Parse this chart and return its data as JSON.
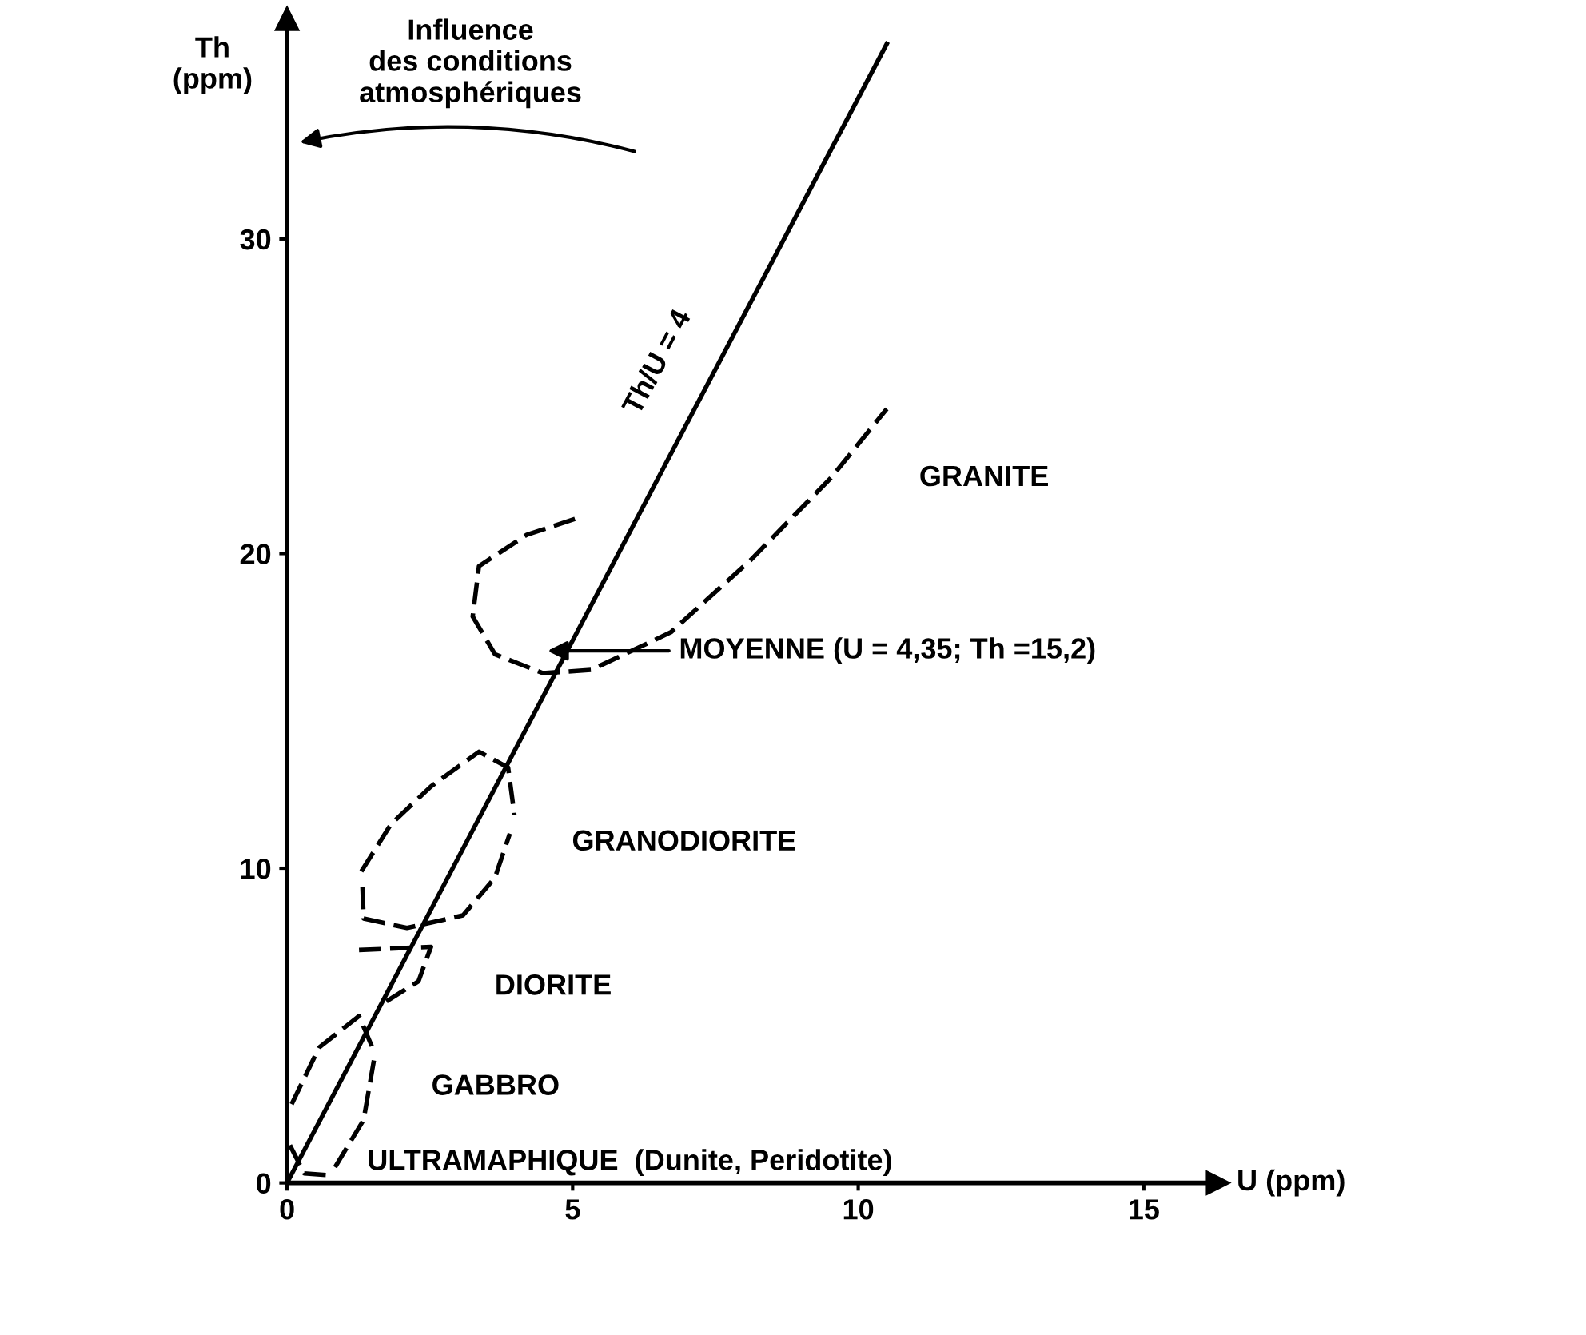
{
  "chart_data": {
    "type": "line",
    "xlabel": "U (ppm)",
    "ylabel": "Th\n(ppm)",
    "xlim": [
      0,
      16.3
    ],
    "ylim": [
      0,
      37
    ],
    "xticks": [
      0,
      5,
      10,
      15
    ],
    "yticks": [
      0,
      10,
      20,
      30
    ],
    "grid": false,
    "legend": false,
    "series": [
      {
        "name": "Th/U = 4",
        "color": "#000000",
        "line_style": "solid",
        "x": [
          0,
          10.5
        ],
        "values": [
          0,
          36.2
        ]
      },
      {
        "color": "#000000",
        "line_style": "dashed",
        "x": [
          5.04,
          4.2,
          3.36,
          3.25,
          3.64,
          4.48,
          5.32,
          6.72,
          8.12,
          9.52,
          10.5
        ],
        "values": [
          21.1,
          20.6,
          19.6,
          18.0,
          16.8,
          16.2,
          16.3,
          17.5,
          19.8,
          22.4,
          24.6
        ]
      },
      {
        "color": "#000000",
        "line_style": "dashed",
        "x": [
          1.3,
          1.82,
          2.52,
          3.36,
          3.87,
          3.98
        ],
        "values": [
          9.9,
          11.4,
          12.6,
          13.7,
          13.2,
          11.7
        ]
      },
      {
        "color": "#000000",
        "line_style": "dashed",
        "x": [
          1.32,
          1.34,
          2.1,
          3.08,
          3.64,
          3.9
        ],
        "values": [
          9.4,
          8.4,
          8.1,
          8.5,
          9.7,
          11.1
        ]
      },
      {
        "color": "#000000",
        "line_style": "dashed",
        "x": [
          1.26,
          2.52,
          2.3,
          1.68
        ],
        "values": [
          7.4,
          7.5,
          6.4,
          5.7
        ]
      },
      {
        "color": "#000000",
        "line_style": "dashed",
        "x": [
          0.08,
          0.56,
          1.26,
          1.54
        ],
        "values": [
          2.5,
          4.3,
          5.3,
          4.1
        ]
      },
      {
        "color": "#000000",
        "line_style": "dashed",
        "x": [
          0.84,
          1.34,
          1.54
        ],
        "values": [
          0.5,
          2.0,
          4.1
        ]
      },
      {
        "color": "#000000",
        "line_style": "dashed",
        "x": [
          0.05,
          0.3,
          0.7
        ],
        "values": [
          1.2,
          0.3,
          0.25
        ]
      }
    ],
    "annotations": [
      "Influence\ndes conditions\natmosphériques",
      "MOYENNE (U = 4,35; Th =15,2)",
      "GRANITE",
      "GRANODIORITE",
      "DIORITE",
      "GABBRO",
      "ULTRAMAPHIQUE  (Dunite, Peridotite)"
    ]
  }
}
